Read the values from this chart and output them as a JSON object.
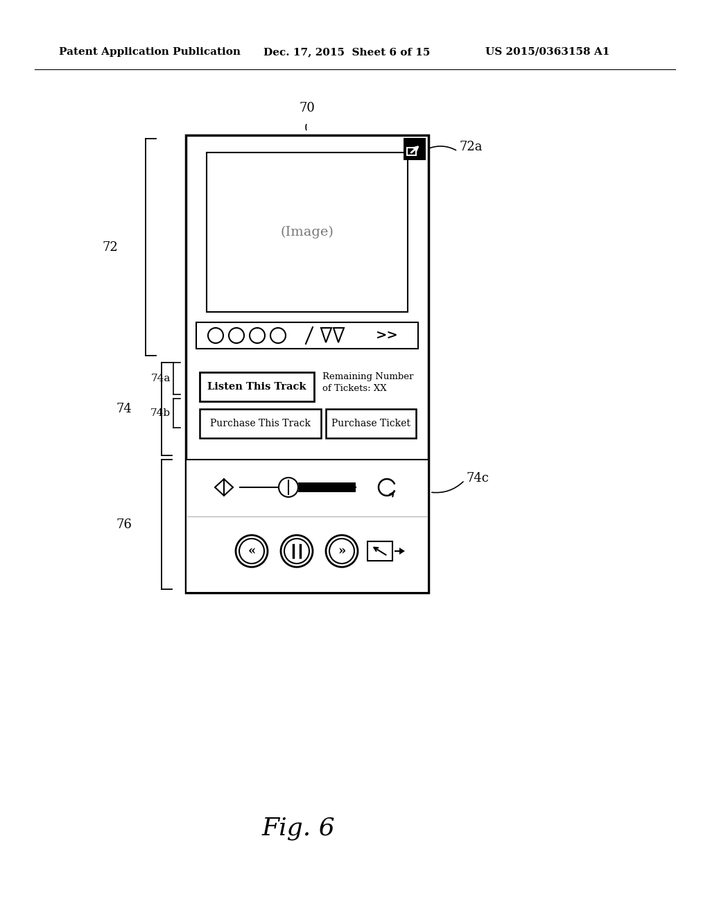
{
  "bg_color": "#ffffff",
  "header_left": "Patent Application Publication",
  "header_mid": "Dec. 17, 2015  Sheet 6 of 15",
  "header_right": "US 2015/0363158 A1",
  "fig_label": "Fig. 6",
  "label_70": "70",
  "label_72": "72",
  "label_72a": "72a",
  "label_74": "74",
  "label_74a": "74a",
  "label_74b": "74b",
  "label_74c": "74c",
  "label_76": "76",
  "image_text": "(Image)",
  "btn_listen": "Listen This Track",
  "btn_purchase_track": "Purchase This Track",
  "btn_purchase_ticket": "Purchase Ticket",
  "remaining_text": "Remaining Number\nof Tickets: XX"
}
